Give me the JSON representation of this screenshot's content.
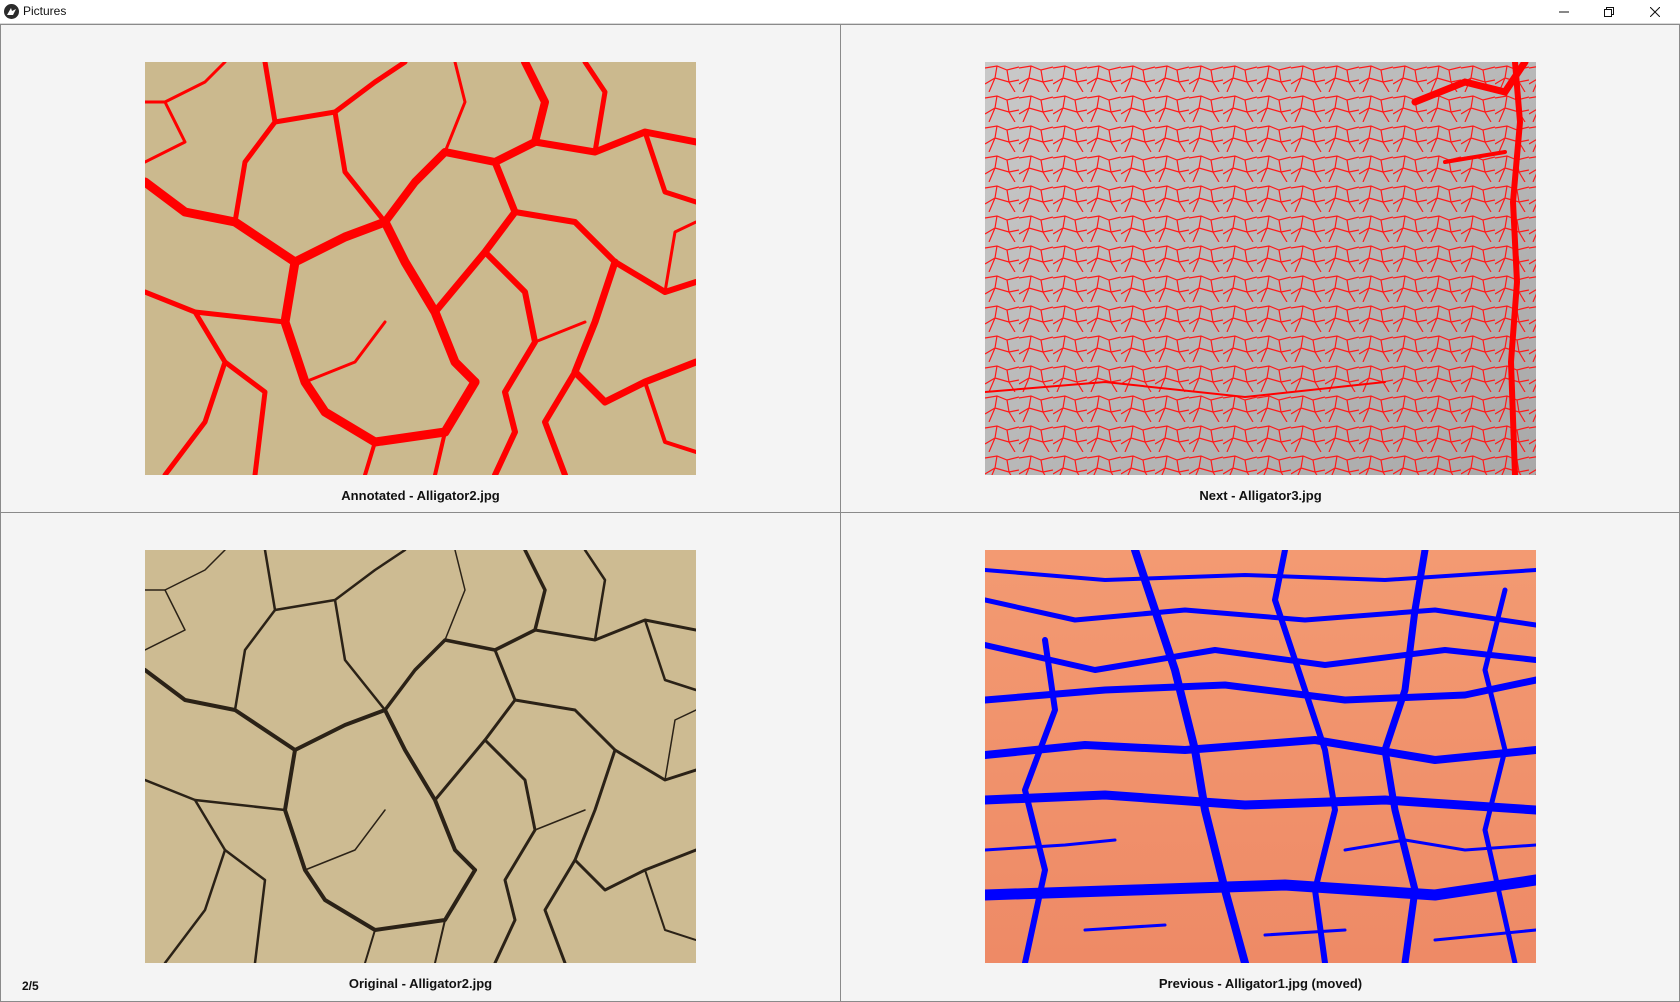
{
  "window": {
    "title": "Pictures",
    "app_icon": "kivy-icon",
    "controls": [
      "minimize-icon",
      "restore-icon",
      "close-icon"
    ]
  },
  "panels": [
    {
      "caption": "Annotated - Alligator2.jpg",
      "image": "cracked-mud-red-annotation",
      "crack_color": "#ff0000",
      "base_color": "#cbb98e"
    },
    {
      "caption": "Next - Alligator3.jpg",
      "image": "cracked-concrete-red-annotation",
      "crack_color": "#ff1a1a",
      "base_color": "#bdbdbd"
    },
    {
      "caption": "Original - Alligator2.jpg",
      "image": "cracked-mud-original",
      "crack_color": "#2b2217",
      "base_color": "#cbb98e"
    },
    {
      "caption": "Previous - Alligator1.jpg (moved)",
      "image": "cracked-clay-blue-annotation",
      "crack_color": "#0000ff",
      "base_color": "#f2906a"
    }
  ],
  "status": {
    "page_counter": "2/5"
  }
}
